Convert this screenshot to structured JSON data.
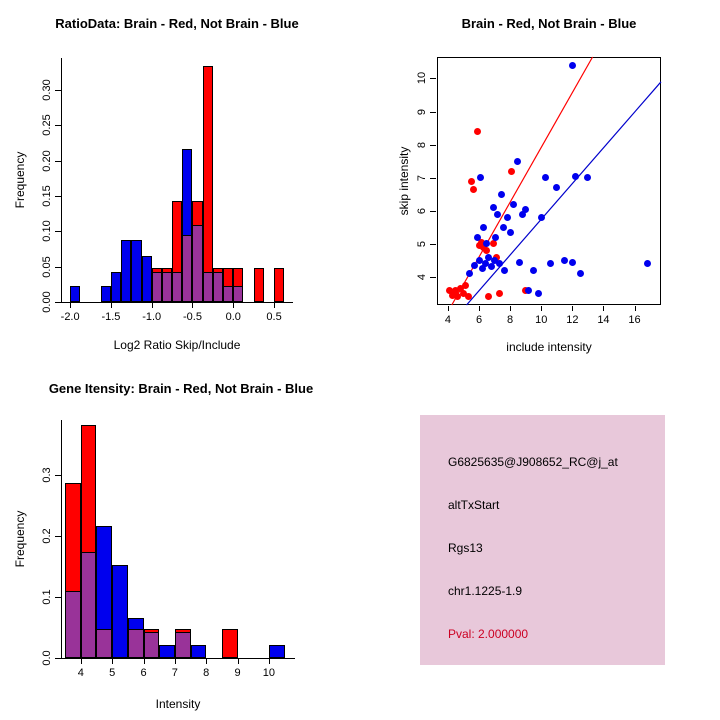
{
  "figure": {
    "background": "#FFFFFF"
  },
  "chart_data": [
    {
      "type": "bar",
      "variant": "overlaid-histogram",
      "title": "RatioData: Brain - Red, Not Brain - Blue",
      "xlabel": "Log2 Ratio Skip/Include",
      "ylabel": "Frequency",
      "xlim": [
        -2.1,
        0.72
      ],
      "ylim": [
        0,
        0.345
      ],
      "bin_width": 0.125,
      "grid": false,
      "xticks": [
        "-2.0",
        "-1.5",
        "-1.0",
        "-0.5",
        "0.0",
        "0.5"
      ],
      "xtick_values": [
        -2.0,
        -1.5,
        -1.0,
        -0.5,
        0.0,
        0.5
      ],
      "yticks": [
        "0.00",
        "0.05",
        "0.10",
        "0.15",
        "0.20",
        "0.25",
        "0.30"
      ],
      "ytick_values": [
        0,
        0.05,
        0.1,
        0.15,
        0.2,
        0.25,
        0.3
      ],
      "overlap_color": "#993399",
      "series": [
        {
          "name": "Brain",
          "color": "#FF0000",
          "bins": [
            [
              -1.0,
              0.048
            ],
            [
              -0.875,
              0.048
            ],
            [
              -0.75,
              0.143
            ],
            [
              -0.625,
              0.095
            ],
            [
              -0.5,
              0.143
            ],
            [
              -0.375,
              0.333
            ],
            [
              -0.25,
              0.048
            ],
            [
              -0.125,
              0.048
            ],
            [
              0.0,
              0.048
            ],
            [
              0.25,
              0.048
            ],
            [
              0.5,
              0.048
            ]
          ]
        },
        {
          "name": "Not Brain",
          "color": "#0000EE",
          "bins": [
            [
              -2.0,
              0.022
            ],
            [
              -1.625,
              0.022
            ],
            [
              -1.5,
              0.043
            ],
            [
              -1.375,
              0.087
            ],
            [
              -1.25,
              0.087
            ],
            [
              -1.125,
              0.065
            ],
            [
              -1.0,
              0.043
            ],
            [
              -0.875,
              0.043
            ],
            [
              -0.75,
              0.043
            ],
            [
              -0.625,
              0.217
            ],
            [
              -0.5,
              0.109
            ],
            [
              -0.375,
              0.043
            ],
            [
              -0.25,
              0.043
            ],
            [
              -0.125,
              0.022
            ],
            [
              0.0,
              0.022
            ]
          ]
        }
      ]
    },
    {
      "type": "scatter",
      "title": "Brain - Red, Not Brain - Blue",
      "xlabel": "include intensity",
      "ylabel": "skip intensity",
      "xlim": [
        3.3,
        17.7
      ],
      "ylim": [
        3.15,
        10.65
      ],
      "grid": false,
      "xticks": [
        "4",
        "6",
        "8",
        "10",
        "12",
        "14",
        "16"
      ],
      "xtick_values": [
        4,
        6,
        8,
        10,
        12,
        14,
        16
      ],
      "yticks": [
        "4",
        "5",
        "6",
        "7",
        "8",
        "9",
        "10"
      ],
      "ytick_values": [
        4,
        5,
        6,
        7,
        8,
        9,
        10
      ],
      "series": [
        {
          "name": "Brain",
          "color": "#FF0000",
          "points": [
            [
              4.1,
              3.6
            ],
            [
              4.3,
              3.45
            ],
            [
              4.5,
              3.6
            ],
            [
              4.6,
              3.4
            ],
            [
              4.8,
              3.65
            ],
            [
              5.0,
              3.5
            ],
            [
              5.15,
              3.75
            ],
            [
              5.3,
              3.4
            ],
            [
              5.5,
              6.9
            ],
            [
              5.65,
              6.65
            ],
            [
              5.9,
              8.4
            ],
            [
              6.0,
              4.95
            ],
            [
              6.15,
              5.05
            ],
            [
              6.3,
              4.9
            ],
            [
              6.45,
              4.8
            ],
            [
              6.6,
              3.4
            ],
            [
              6.9,
              5.0
            ],
            [
              7.1,
              4.6
            ],
            [
              7.3,
              3.5
            ],
            [
              8.1,
              7.2
            ],
            [
              9.0,
              3.6
            ]
          ]
        },
        {
          "name": "Not Brain",
          "color": "#0000EE",
          "points": [
            [
              5.4,
              4.1
            ],
            [
              5.7,
              4.35
            ],
            [
              5.9,
              5.2
            ],
            [
              6.0,
              4.5
            ],
            [
              6.1,
              7.0
            ],
            [
              6.2,
              4.25
            ],
            [
              6.3,
              5.5
            ],
            [
              6.4,
              4.4
            ],
            [
              6.5,
              5.0
            ],
            [
              6.6,
              4.6
            ],
            [
              6.8,
              4.3
            ],
            [
              6.9,
              6.1
            ],
            [
              7.0,
              4.5
            ],
            [
              7.05,
              5.2
            ],
            [
              7.2,
              5.9
            ],
            [
              7.3,
              4.4
            ],
            [
              7.45,
              6.5
            ],
            [
              7.55,
              5.5
            ],
            [
              7.65,
              4.2
            ],
            [
              7.8,
              5.8
            ],
            [
              8.0,
              5.35
            ],
            [
              8.2,
              6.2
            ],
            [
              8.5,
              7.5
            ],
            [
              8.6,
              4.45
            ],
            [
              8.8,
              5.9
            ],
            [
              9.0,
              6.05
            ],
            [
              9.2,
              3.6
            ],
            [
              9.5,
              4.2
            ],
            [
              9.8,
              3.5
            ],
            [
              10.0,
              5.8
            ],
            [
              10.3,
              7.0
            ],
            [
              10.6,
              4.4
            ],
            [
              11.0,
              6.7
            ],
            [
              11.5,
              4.5
            ],
            [
              12.0,
              10.4
            ],
            [
              12.2,
              7.05
            ],
            [
              12.5,
              4.1
            ],
            [
              13.0,
              7.0
            ],
            [
              12.0,
              4.45
            ],
            [
              16.8,
              4.4
            ]
          ]
        }
      ],
      "lines": [
        {
          "name": "brain-fit-line",
          "color": "#FF0000",
          "x1": 4.25,
          "y1": 3.15,
          "x2": 13.3,
          "y2": 10.65
        },
        {
          "name": "not-brain-fit-line",
          "color": "#0000CC",
          "x1": 5.2,
          "y1": 3.15,
          "x2": 17.7,
          "y2": 9.9
        }
      ]
    },
    {
      "type": "bar",
      "variant": "overlaid-histogram",
      "title": "Gene Itensity: Brain - Red, Not Brain - Blue",
      "xlabel": "Intensity",
      "ylabel": "Frequency",
      "xlim": [
        3.4,
        10.8
      ],
      "ylim": [
        0,
        0.39
      ],
      "bin_width": 0.5,
      "grid": false,
      "xticks": [
        "4",
        "5",
        "6",
        "7",
        "8",
        "9",
        "10"
      ],
      "xtick_values": [
        4,
        5,
        6,
        7,
        8,
        9,
        10
      ],
      "yticks": [
        "0.0",
        "0.1",
        "0.2",
        "0.3"
      ],
      "ytick_values": [
        0,
        0.1,
        0.2,
        0.3
      ],
      "overlap_color": "#993399",
      "series": [
        {
          "name": "Brain",
          "color": "#FF0000",
          "bins": [
            [
              3.5,
              0.286
            ],
            [
              4.0,
              0.381
            ],
            [
              4.5,
              0.048
            ],
            [
              5.5,
              0.048
            ],
            [
              6.0,
              0.048
            ],
            [
              7.0,
              0.048
            ],
            [
              8.5,
              0.048
            ]
          ]
        },
        {
          "name": "Not Brain",
          "color": "#0000EE",
          "bins": [
            [
              3.5,
              0.109
            ],
            [
              4.0,
              0.174
            ],
            [
              4.5,
              0.217
            ],
            [
              5.0,
              0.152
            ],
            [
              5.5,
              0.065
            ],
            [
              6.0,
              0.043
            ],
            [
              6.5,
              0.022
            ],
            [
              7.0,
              0.043
            ],
            [
              7.5,
              0.022
            ],
            [
              10.0,
              0.022
            ]
          ]
        }
      ]
    }
  ],
  "info_panel": {
    "bg": "#E8C8DA",
    "lines": [
      {
        "text": "G6825635@J908652_RC@j_at",
        "color": "#000000"
      },
      {
        "text": "altTxStart",
        "color": "#000000"
      },
      {
        "text": "Rgs13",
        "color": "#000000"
      },
      {
        "text": "chr1.1225-1.9",
        "color": "#000000"
      },
      {
        "text": "Pval: 2.000000",
        "color": "#CC0022"
      }
    ]
  }
}
